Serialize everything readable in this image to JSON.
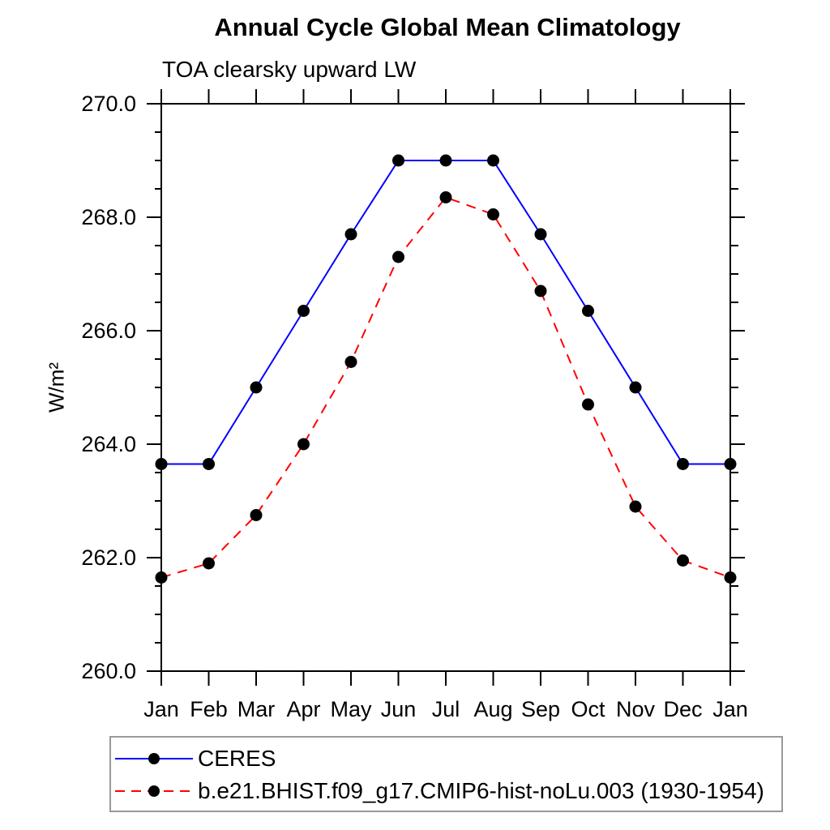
{
  "chart_data": {
    "type": "line",
    "title": "Annual Cycle Global Mean Climatology",
    "subtitle": "TOA clearsky upward LW",
    "ylabel": "W/m²",
    "xlabel": "",
    "categories": [
      "Jan",
      "Feb",
      "Mar",
      "Apr",
      "May",
      "Jun",
      "Jul",
      "Aug",
      "Sep",
      "Oct",
      "Nov",
      "Dec",
      "Jan"
    ],
    "ylim": [
      260.0,
      270.0
    ],
    "ytick_major": [
      260.0,
      262.0,
      264.0,
      266.0,
      268.0,
      270.0
    ],
    "ytick_major_labels": [
      "260.0",
      "262.0",
      "264.0",
      "266.0",
      "268.0",
      "270.0"
    ],
    "ytick_minor_step": 0.5,
    "grid": false,
    "legend_position": "bottom",
    "axis_color": "#000000",
    "marker_shape": "filled-circle",
    "series": [
      {
        "name": "CERES",
        "color": "#0000ff",
        "line_style": "solid",
        "marker_color": "#000000",
        "values": [
          263.65,
          263.65,
          265.0,
          266.35,
          267.7,
          269.0,
          269.0,
          269.0,
          267.7,
          266.35,
          265.0,
          263.65,
          263.65
        ]
      },
      {
        "name": "b.e21.BHIST.f09_g17.CMIP6-hist-noLu.003 (1930-1954)",
        "color": "#ff0000",
        "line_style": "dashed",
        "marker_color": "#000000",
        "values": [
          261.65,
          261.9,
          262.75,
          264.0,
          265.45,
          267.3,
          268.35,
          268.05,
          266.7,
          264.7,
          262.9,
          261.95,
          261.65
        ]
      }
    ]
  }
}
